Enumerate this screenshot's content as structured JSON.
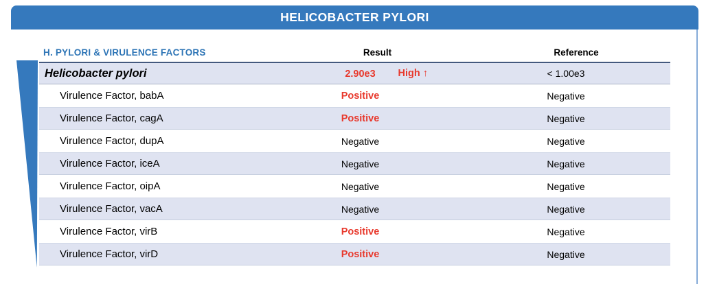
{
  "page": {
    "title": "HELICOBACTER PYLORI"
  },
  "table": {
    "columns": {
      "name": "H. PYLORI & VIRULENCE FACTORS",
      "result": "Result",
      "reference": "Reference"
    },
    "rows": [
      {
        "name": "Helicobacter pylori",
        "result": "2.90e3",
        "flag": "High ↑",
        "reference": "< 1.00e3",
        "status": "high"
      },
      {
        "name": "Virulence Factor, babA",
        "result": "Positive",
        "reference": "Negative",
        "status": "positive"
      },
      {
        "name": "Virulence Factor, cagA",
        "result": "Positive",
        "reference": "Negative",
        "status": "positive"
      },
      {
        "name": "Virulence Factor, dupA",
        "result": "Negative",
        "reference": "Negative",
        "status": "negative"
      },
      {
        "name": "Virulence Factor, iceA",
        "result": "Negative",
        "reference": "Negative",
        "status": "negative"
      },
      {
        "name": "Virulence Factor, oipA",
        "result": "Negative",
        "reference": "Negative",
        "status": "negative"
      },
      {
        "name": "Virulence Factor, vacA",
        "result": "Negative",
        "reference": "Negative",
        "status": "negative"
      },
      {
        "name": "Virulence Factor, virB",
        "result": "Positive",
        "reference": "Negative",
        "status": "positive"
      },
      {
        "name": "Virulence Factor, virD",
        "result": "Positive",
        "reference": "Negative",
        "status": "positive"
      }
    ]
  },
  "colors": {
    "header_bar": "#3579BD",
    "accent_blue": "#2E75B6",
    "stripe": "#DFE3F1",
    "alert_red": "#E8392D",
    "dark_rule": "#44597E",
    "page_border": "#85ABD8"
  }
}
